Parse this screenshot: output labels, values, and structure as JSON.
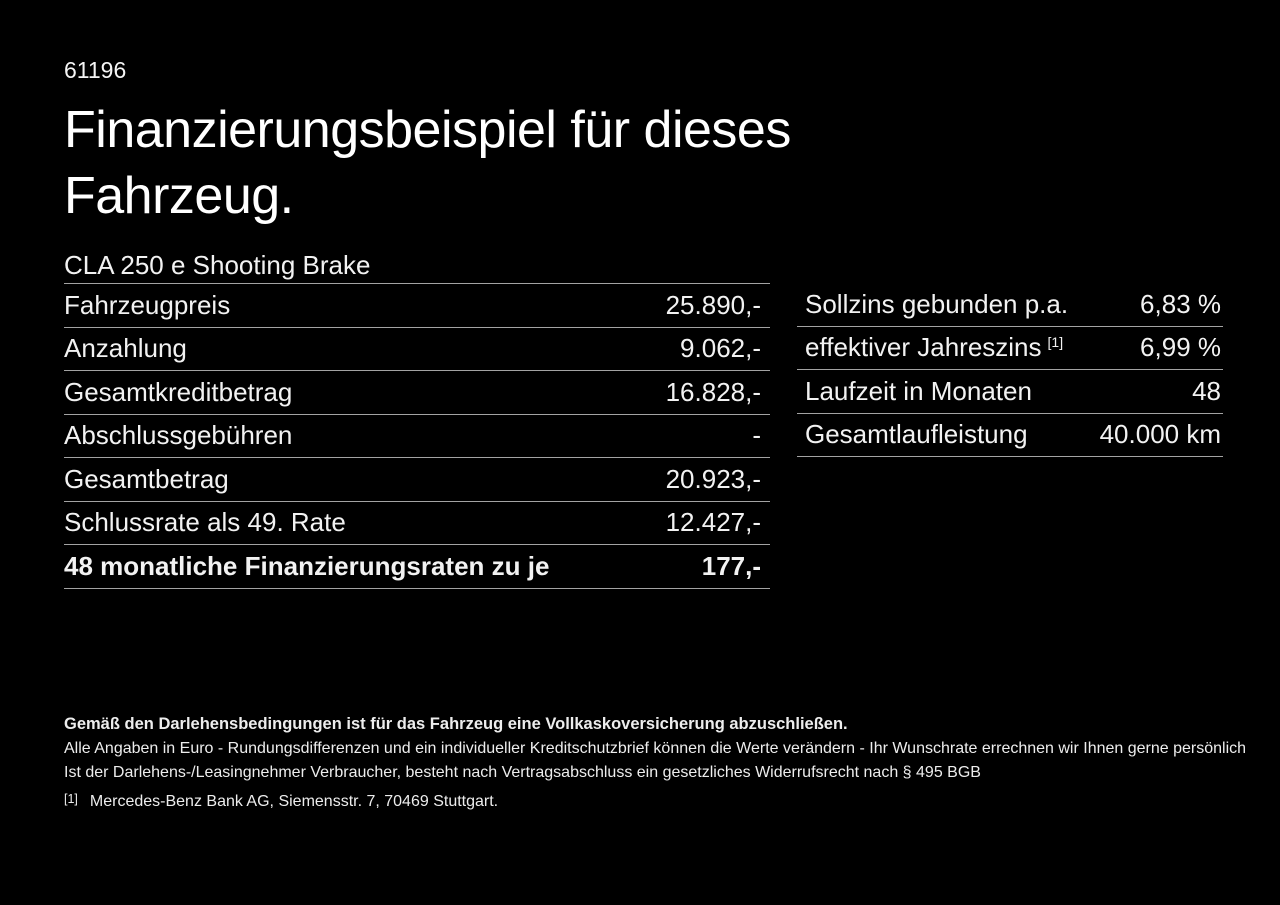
{
  "doc_number": "61196",
  "title": {
    "line1": "Finanzierungsbeispiel für dieses",
    "line2": "Fahrzeug."
  },
  "vehicle_name": "CLA 250 e Shooting Brake",
  "left_table": {
    "rows": [
      {
        "label": "Fahrzeugpreis",
        "value": "25.890,-"
      },
      {
        "label": "Anzahlung",
        "value": "9.062,-"
      },
      {
        "label": "Gesamtkreditbetrag",
        "value": "16.828,-"
      },
      {
        "label": "Abschlussgebühren",
        "value": "-"
      },
      {
        "label": "Gesamtbetrag",
        "value": "20.923,-"
      },
      {
        "label": "Schlussrate als 49. Rate",
        "value": "12.427,-"
      },
      {
        "label": "48 monatliche Finanzierungsraten zu je",
        "value": "177,-"
      }
    ]
  },
  "right_table": {
    "rows": [
      {
        "label": "Sollzins gebunden p.a.",
        "superscript": "",
        "value": "6,83 %"
      },
      {
        "label": "effektiver Jahreszins",
        "superscript": "[1]",
        "value": "6,99 %"
      },
      {
        "label": "Laufzeit in Monaten",
        "superscript": "",
        "value": "48"
      },
      {
        "label": "Gesamtlaufleistung",
        "superscript": "",
        "value": "40.000 km"
      }
    ]
  },
  "footer": {
    "bold_note": "Gemäß den Darlehensbedingungen ist für das Fahrzeug eine Vollkaskoversicherung abzuschließen.",
    "note1": "Alle Angaben in Euro - Rundungsdifferenzen und ein individueller Kreditschutzbrief können die Werte verändern - Ihr Wunschrate errechnen wir Ihnen gerne persönlich",
    "note2": "Ist der Darlehens-/Leasingnehmer Verbraucher, besteht nach Vertragsabschluss ein gesetzliches Widerrufsrecht nach § 495 BGB",
    "footnote_marker": "[1]",
    "footnote_text": "Mercedes-Benz Bank AG, Siemensstr. 7, 70469 Stuttgart."
  },
  "colors": {
    "background": "#000000",
    "text": "#f2f2f2",
    "title_text": "#ffffff",
    "divider": "#a3a3a3"
  }
}
